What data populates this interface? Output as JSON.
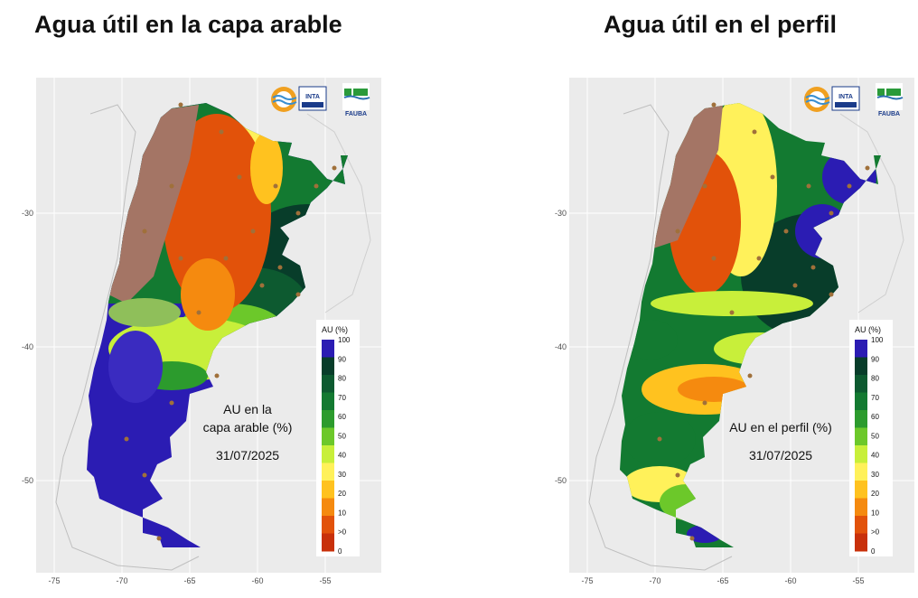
{
  "titles": {
    "left": "Agua útil en la capa arable",
    "right": "Agua útil en el perfil"
  },
  "axes": {
    "x_ticks": [
      "-75",
      "-70",
      "-65",
      "-60",
      "-55"
    ],
    "y_ticks": [
      "-30",
      "-40",
      "-50"
    ]
  },
  "legend": {
    "title": "AU (%)",
    "labels": [
      "100",
      "90",
      "80",
      "70",
      "60",
      "50",
      "40",
      "30",
      "20",
      "10",
      ">0",
      "0"
    ],
    "colors": [
      "#2b1cb3",
      "#083d2a",
      "#0d5a30",
      "#137a31",
      "#2c9b2d",
      "#6cc82a",
      "#c8ef3a",
      "#fff15a",
      "#ffc21f",
      "#f58a0f",
      "#e2520a",
      "#c8300a"
    ]
  },
  "maps": {
    "left": {
      "annotation": [
        "AU en la",
        "capa arable (%)",
        "31/07/2025"
      ]
    },
    "right": {
      "annotation": [
        "AU en el perfil (%)",
        "31/07/2025"
      ]
    }
  },
  "logos": {
    "inta": "INTA",
    "fauba": "FAUBA"
  },
  "icons": [
    "wave-logo-icon",
    "inta-logo-icon",
    "fauba-logo-icon"
  ]
}
